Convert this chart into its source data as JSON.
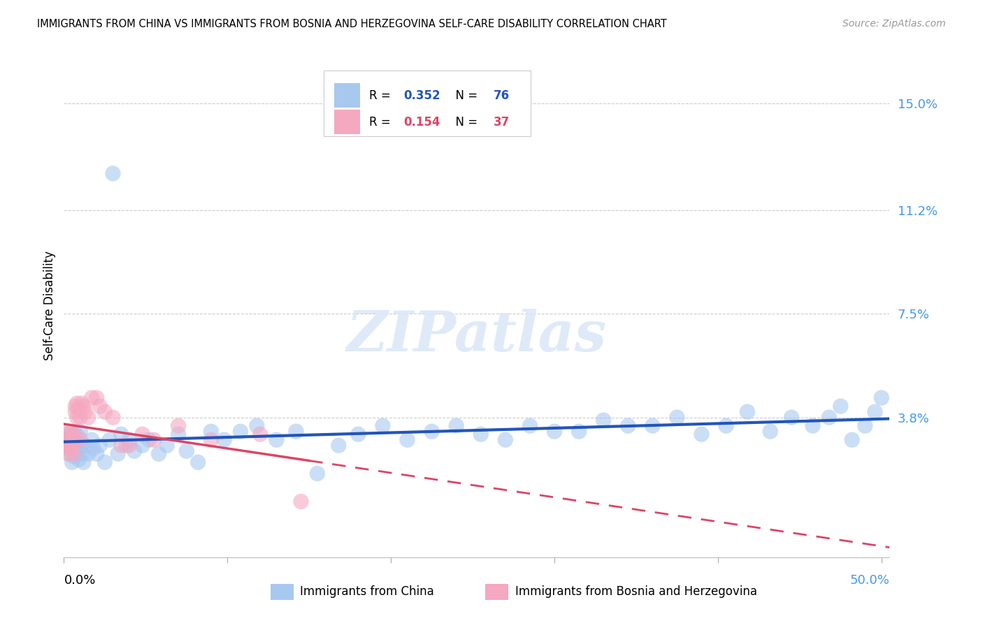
{
  "title": "IMMIGRANTS FROM CHINA VS IMMIGRANTS FROM BOSNIA AND HERZEGOVINA SELF-CARE DISABILITY CORRELATION CHART",
  "source": "Source: ZipAtlas.com",
  "ylabel": "Self-Care Disability",
  "ytick_vals": [
    0.038,
    0.075,
    0.112,
    0.15
  ],
  "ytick_labels": [
    "3.8%",
    "7.5%",
    "11.2%",
    "15.0%"
  ],
  "xlim": [
    0.0,
    0.505
  ],
  "ylim": [
    -0.012,
    0.168
  ],
  "color_china": "#a8c8f0",
  "color_bosnia": "#f5a8c0",
  "line_china": "#2255bb",
  "line_bosnia": "#dd4466",
  "R_china": 0.352,
  "N_china": 76,
  "R_bosnia": 0.154,
  "N_bosnia": 37,
  "legend_label_china": "Immigrants from China",
  "legend_label_bosnia": "Immigrants from Bosnia and Herzegovina",
  "watermark": "ZIPatlas",
  "china_x": [
    0.001,
    0.002,
    0.003,
    0.003,
    0.004,
    0.004,
    0.005,
    0.005,
    0.005,
    0.006,
    0.006,
    0.007,
    0.007,
    0.008,
    0.008,
    0.009,
    0.009,
    0.01,
    0.01,
    0.011,
    0.012,
    0.013,
    0.015,
    0.017,
    0.018,
    0.02,
    0.022,
    0.025,
    0.028,
    0.03,
    0.033,
    0.035,
    0.038,
    0.04,
    0.043,
    0.048,
    0.052,
    0.058,
    0.063,
    0.07,
    0.075,
    0.082,
    0.09,
    0.098,
    0.108,
    0.118,
    0.13,
    0.142,
    0.155,
    0.168,
    0.18,
    0.195,
    0.21,
    0.225,
    0.24,
    0.255,
    0.27,
    0.285,
    0.3,
    0.315,
    0.33,
    0.345,
    0.36,
    0.375,
    0.39,
    0.405,
    0.418,
    0.432,
    0.445,
    0.458,
    0.468,
    0.475,
    0.482,
    0.49,
    0.496,
    0.5
  ],
  "china_y": [
    0.028,
    0.032,
    0.025,
    0.03,
    0.027,
    0.031,
    0.022,
    0.028,
    0.033,
    0.024,
    0.03,
    0.026,
    0.032,
    0.025,
    0.029,
    0.023,
    0.031,
    0.027,
    0.033,
    0.025,
    0.022,
    0.028,
    0.025,
    0.03,
    0.027,
    0.025,
    0.028,
    0.022,
    0.03,
    0.125,
    0.025,
    0.032,
    0.028,
    0.03,
    0.026,
    0.028,
    0.03,
    0.025,
    0.028,
    0.032,
    0.026,
    0.022,
    0.033,
    0.03,
    0.033,
    0.035,
    0.03,
    0.033,
    0.018,
    0.028,
    0.032,
    0.035,
    0.03,
    0.033,
    0.035,
    0.032,
    0.03,
    0.035,
    0.033,
    0.033,
    0.037,
    0.035,
    0.035,
    0.038,
    0.032,
    0.035,
    0.04,
    0.033,
    0.038,
    0.035,
    0.038,
    0.042,
    0.03,
    0.035,
    0.04,
    0.045
  ],
  "bosnia_x": [
    0.001,
    0.001,
    0.002,
    0.002,
    0.003,
    0.003,
    0.003,
    0.004,
    0.004,
    0.005,
    0.005,
    0.006,
    0.006,
    0.007,
    0.007,
    0.008,
    0.008,
    0.009,
    0.01,
    0.01,
    0.011,
    0.012,
    0.013,
    0.015,
    0.017,
    0.02,
    0.022,
    0.025,
    0.03,
    0.035,
    0.04,
    0.048,
    0.055,
    0.07,
    0.09,
    0.12,
    0.145
  ],
  "bosnia_y": [
    0.028,
    0.03,
    0.03,
    0.027,
    0.033,
    0.025,
    0.028,
    0.032,
    0.027,
    0.03,
    0.028,
    0.032,
    0.025,
    0.042,
    0.04,
    0.043,
    0.038,
    0.041,
    0.038,
    0.03,
    0.043,
    0.042,
    0.04,
    0.038,
    0.045,
    0.045,
    0.042,
    0.04,
    0.038,
    0.028,
    0.028,
    0.032,
    0.03,
    0.035,
    0.03,
    0.032,
    0.008
  ]
}
